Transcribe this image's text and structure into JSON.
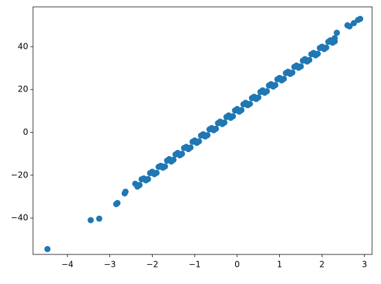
{
  "chart_data": {
    "type": "scatter",
    "color": "#1f77b4",
    "x": [
      -4.47,
      -3.45,
      -3.25,
      -2.85,
      -2.82,
      -2.65,
      -2.63,
      2.9,
      2.85,
      2.75,
      2.6,
      2.65,
      2.35,
      2.3,
      -2.4,
      -2.3,
      -2.2,
      -2.1,
      -2.0,
      -1.9,
      -1.8,
      -1.7,
      -1.6,
      -1.5,
      -1.4,
      -1.3,
      -1.2,
      -1.1,
      -1.0,
      -0.9,
      -0.8,
      -0.7,
      -0.6,
      -0.5,
      -0.4,
      -0.3,
      -0.2,
      -0.1,
      0,
      0.1,
      0.2,
      0.3,
      0.4,
      0.5,
      0.6,
      0.7,
      0.8,
      0.9,
      1.0,
      1.1,
      1.2,
      1.3,
      1.4,
      1.5,
      1.6,
      1.7,
      1.8,
      1.9,
      2.0,
      2.1,
      2.2,
      2.3,
      -2.35,
      -2.25,
      -2.15,
      -2.05,
      -1.95,
      -1.85,
      -1.75,
      -1.65,
      -1.55,
      -1.45,
      -1.35,
      -1.25,
      -1.15,
      -1.05,
      -0.95,
      -0.85,
      -0.75,
      -0.65,
      -0.55,
      -0.45,
      -0.35,
      -0.25,
      -0.15,
      -0.05,
      0.05,
      0.15,
      0.25,
      0.35,
      0.45,
      0.55,
      0.65,
      0.75,
      0.85,
      0.95,
      1.05,
      1.15,
      1.25,
      1.35,
      1.45,
      1.55,
      1.65,
      1.75,
      1.85,
      1.95,
      2.05,
      2.15,
      2.25
    ],
    "y": [
      -54.5,
      -41,
      -40.3,
      -33.5,
      -33,
      -28.5,
      -27.7,
      53,
      52.5,
      51,
      50,
      49.5,
      46.5,
      44,
      -24.0,
      -24.6,
      -21.5,
      -21.8,
      -18.4,
      -18.9,
      -15.6,
      -15.9,
      -12.5,
      -12.8,
      -9.6,
      -10.0,
      -6.8,
      -7.1,
      -3.8,
      -4.2,
      -0.9,
      -1.3,
      2.0,
      1.7,
      5.0,
      4.6,
      7.9,
      7.5,
      10.9,
      10.4,
      13.8,
      13.3,
      16.6,
      16.3,
      19.6,
      19.2,
      22.5,
      22.1,
      25.4,
      25.0,
      28.3,
      27.9,
      31.2,
      30.8,
      34.2,
      33.8,
      37.1,
      36.7,
      40.0,
      39.6,
      43.0,
      42.5,
      -25.3,
      -21.9,
      -22.4,
      -19.0,
      -19.5,
      -16.1,
      -16.5,
      -13.2,
      -13.6,
      -10.3,
      -10.7,
      -7.3,
      -7.8,
      -4.4,
      -4.9,
      -1.5,
      -1.9,
      1.4,
      1.0,
      4.3,
      3.9,
      7.2,
      6.8,
      10.2,
      9.7,
      13.1,
      12.7,
      16.0,
      15.6,
      18.9,
      18.5,
      21.9,
      21.4,
      24.8,
      24.3,
      27.7,
      27.3,
      30.6,
      30.2,
      33.5,
      33.1,
      36.5,
      36.0,
      39.4,
      38.9,
      42.3,
      41.9
    ],
    "xlim": [
      -4.81,
      3.18
    ],
    "ylim": [
      -57.0,
      58.6
    ],
    "xticks": [
      {
        "value": -4,
        "label": "−4"
      },
      {
        "value": -3,
        "label": "−3"
      },
      {
        "value": -2,
        "label": "−2"
      },
      {
        "value": -1,
        "label": "−1"
      },
      0,
      1,
      2,
      3
    ],
    "yticks": [
      {
        "value": -40,
        "label": "−40"
      },
      {
        "value": -20,
        "label": "−20"
      },
      0,
      20,
      40
    ]
  }
}
